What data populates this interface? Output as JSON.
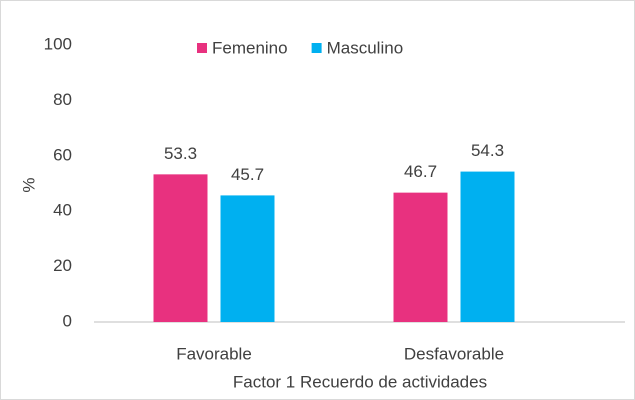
{
  "chart_data": {
    "type": "bar",
    "xlabel": "Factor 1 Recuerdo de actividades",
    "ylabel": "%",
    "categories": [
      "Favorable",
      "Desfavorable"
    ],
    "series": [
      {
        "name": "Femenino",
        "color": "#e8317f",
        "values": [
          53.3,
          46.7
        ]
      },
      {
        "name": "Masculino",
        "color": "#00b0f0",
        "values": [
          45.7,
          54.3
        ]
      }
    ],
    "ylim": [
      0,
      100
    ],
    "yticks": [
      0,
      20,
      40,
      60,
      80,
      100
    ],
    "grid": false,
    "legend": "top"
  }
}
